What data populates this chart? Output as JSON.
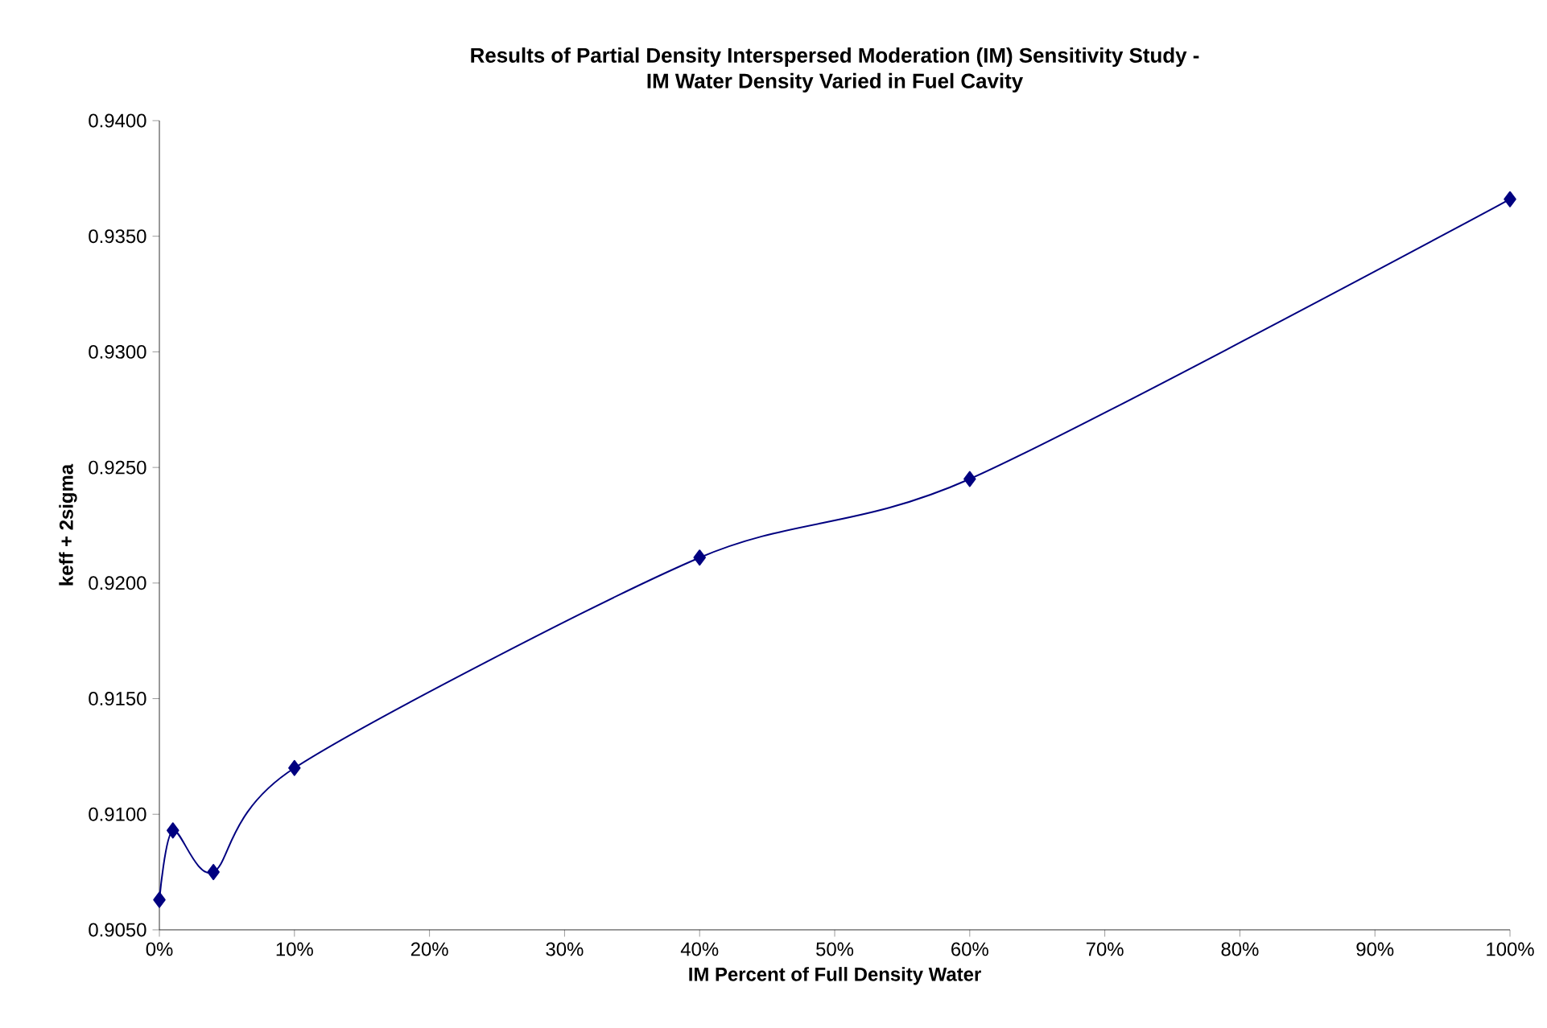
{
  "chart_data": {
    "type": "line",
    "title": "Results of Partial Density Interspersed Moderation (IM) Sensitivity Study -\nIM Water Density Varied in Fuel Cavity",
    "xlabel": "IM Percent of Full Density Water",
    "ylabel": "keff + 2sigma",
    "x": [
      0,
      1,
      4,
      10,
      40,
      60,
      100
    ],
    "series": [
      {
        "color": "#000080",
        "values": [
          0.9063,
          0.9093,
          0.9075,
          0.912,
          0.9211,
          0.9245,
          0.9366
        ]
      }
    ],
    "xlim": [
      0,
      100
    ],
    "ylim": [
      0.905,
      0.94
    ],
    "xticks": [
      {
        "value": 0,
        "label": "0%"
      },
      {
        "value": 10,
        "label": "10%"
      },
      {
        "value": 20,
        "label": "20%"
      },
      {
        "value": 30,
        "label": "30%"
      },
      {
        "value": 40,
        "label": "40%"
      },
      {
        "value": 50,
        "label": "50%"
      },
      {
        "value": 60,
        "label": "60%"
      },
      {
        "value": 70,
        "label": "70%"
      },
      {
        "value": 80,
        "label": "80%"
      },
      {
        "value": 90,
        "label": "90%"
      },
      {
        "value": 100,
        "label": "100%"
      }
    ],
    "yticks": [
      {
        "value": 0.905,
        "label": "0.9050"
      },
      {
        "value": 0.91,
        "label": "0.9100"
      },
      {
        "value": 0.915,
        "label": "0.9150"
      },
      {
        "value": 0.92,
        "label": "0.9200"
      },
      {
        "value": 0.925,
        "label": "0.9250"
      },
      {
        "value": 0.93,
        "label": "0.9300"
      },
      {
        "value": 0.935,
        "label": "0.9350"
      },
      {
        "value": 0.94,
        "label": "0.9400"
      }
    ],
    "marker": "diamond",
    "line_style": "solid",
    "grid": false
  }
}
